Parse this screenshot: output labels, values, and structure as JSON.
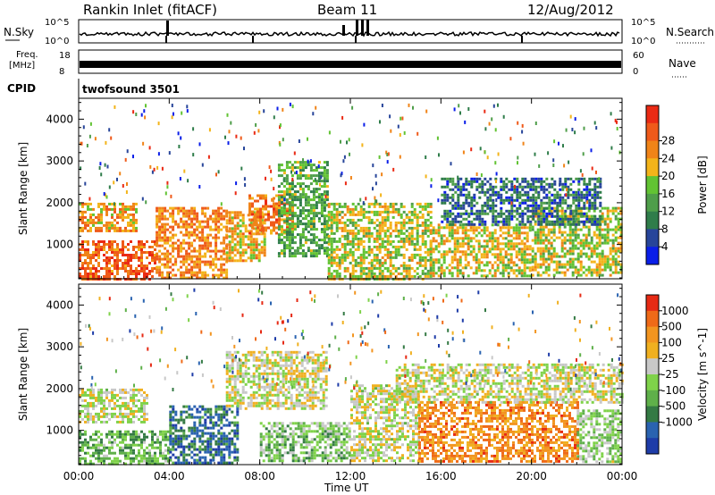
{
  "header": {
    "station": "Rankin Inlet (fitACF)",
    "beam": "Beam 11",
    "date": "12/Aug/2012"
  },
  "strips": {
    "nsky_label": "N.Sky",
    "nsearch_label": "N.Search",
    "nsky_top": "10^5",
    "nsky_bottom": "10^0",
    "nsearch_top": "10^5",
    "nsearch_bottom": "10^0",
    "freq_label": "Freq.",
    "freq_unit": "[MHz]",
    "freq_top": "18",
    "freq_bottom": "8",
    "nave_label": "Nave",
    "nave_top": "60",
    "nave_bottom": "0",
    "cpid_label": "CPID",
    "cpid_value": "twofsound 3501"
  },
  "chart_data": [
    {
      "type": "heatmap",
      "name": "power",
      "ylabel": "Slant Range [km]",
      "ylim": [
        180,
        4500
      ],
      "y_ticks": [
        1000,
        2000,
        3000,
        4000
      ],
      "xlim": [
        0,
        24
      ],
      "x_ticks": [
        0,
        4,
        8,
        12,
        16,
        20,
        24
      ],
      "colorbar": {
        "label": "Power [dB]",
        "range": [
          0,
          32
        ],
        "ticks": [
          "4",
          "8",
          "12",
          "16",
          "20",
          "24",
          "28"
        ],
        "colors": [
          "#0a1ee8",
          "#27459a",
          "#2f7d4a",
          "#4f9e4a",
          "#62c333",
          "#f3b41a",
          "#f08418",
          "#ef5a1a",
          "#ea2a14"
        ]
      },
      "regions": [
        {
          "t0": 0.0,
          "t1": 3.4,
          "r0": 180,
          "r1": 1100,
          "level": 0.85
        },
        {
          "t0": 0.0,
          "t1": 2.5,
          "r0": 1300,
          "r1": 2000,
          "level": 0.7
        },
        {
          "t0": 3.4,
          "t1": 6.5,
          "r0": 180,
          "r1": 1900,
          "level": 0.75
        },
        {
          "t0": 6.5,
          "t1": 8.2,
          "r0": 600,
          "r1": 1800,
          "level": 0.65
        },
        {
          "t0": 7.5,
          "t1": 9.5,
          "r0": 1300,
          "r1": 2200,
          "level": 0.8
        },
        {
          "t0": 8.8,
          "t1": 11.0,
          "r0": 700,
          "r1": 3000,
          "level": 0.4
        },
        {
          "t0": 11.0,
          "t1": 15.5,
          "r0": 200,
          "r1": 2000,
          "level": 0.55
        },
        {
          "t0": 15.5,
          "t1": 20.0,
          "r0": 250,
          "r1": 1500,
          "level": 0.6
        },
        {
          "t0": 20.0,
          "t1": 24.0,
          "r0": 250,
          "r1": 1900,
          "level": 0.55
        },
        {
          "t0": 16.0,
          "t1": 23.0,
          "r0": 1500,
          "r1": 2600,
          "level": 0.2
        }
      ]
    },
    {
      "type": "heatmap",
      "name": "velocity",
      "xlabel": "Time UT",
      "ylabel": "Slant Range [km]",
      "ylim": [
        180,
        4500
      ],
      "y_ticks": [
        1000,
        2000,
        3000,
        4000
      ],
      "xlim": [
        0,
        24
      ],
      "x_ticks": [
        0,
        4,
        8,
        12,
        16,
        20,
        24
      ],
      "x_tick_labels": [
        "00:00",
        "04:00",
        "08:00",
        "12:00",
        "16:00",
        "20:00",
        "00:00"
      ],
      "colorbar": {
        "label": "Velocity [m s^-1]",
        "ticks": [
          "1000",
          "500",
          "100",
          "25",
          "-25",
          "-100",
          "-500",
          "-1000"
        ],
        "colors": [
          "#1e3ca8",
          "#2a63b0",
          "#347a44",
          "#5fb04a",
          "#7fd24a",
          "#c8c8c8",
          "#f0b020",
          "#f29520",
          "#ef6a18",
          "#e62a14"
        ]
      },
      "regions": [
        {
          "t0": 0.0,
          "t1": 4.0,
          "r0": 180,
          "r1": 1000,
          "level": 0.35
        },
        {
          "t0": 0.0,
          "t1": 3.0,
          "r0": 1200,
          "r1": 2000,
          "level": 0.55
        },
        {
          "t0": 4.0,
          "t1": 7.0,
          "r0": 200,
          "r1": 1600,
          "level": 0.15
        },
        {
          "t0": 6.5,
          "t1": 11.0,
          "r0": 1500,
          "r1": 2900,
          "level": 0.55
        },
        {
          "t0": 8.0,
          "t1": 12.0,
          "r0": 300,
          "r1": 1200,
          "level": 0.4
        },
        {
          "t0": 12.0,
          "t1": 15.0,
          "r0": 300,
          "r1": 2100,
          "level": 0.55
        },
        {
          "t0": 15.0,
          "t1": 22.0,
          "r0": 250,
          "r1": 1700,
          "level": 0.8
        },
        {
          "t0": 22.0,
          "t1": 24.0,
          "r0": 250,
          "r1": 1500,
          "level": 0.45
        },
        {
          "t0": 14.0,
          "t1": 24.0,
          "r0": 1700,
          "r1": 2600,
          "level": 0.55
        }
      ]
    }
  ]
}
